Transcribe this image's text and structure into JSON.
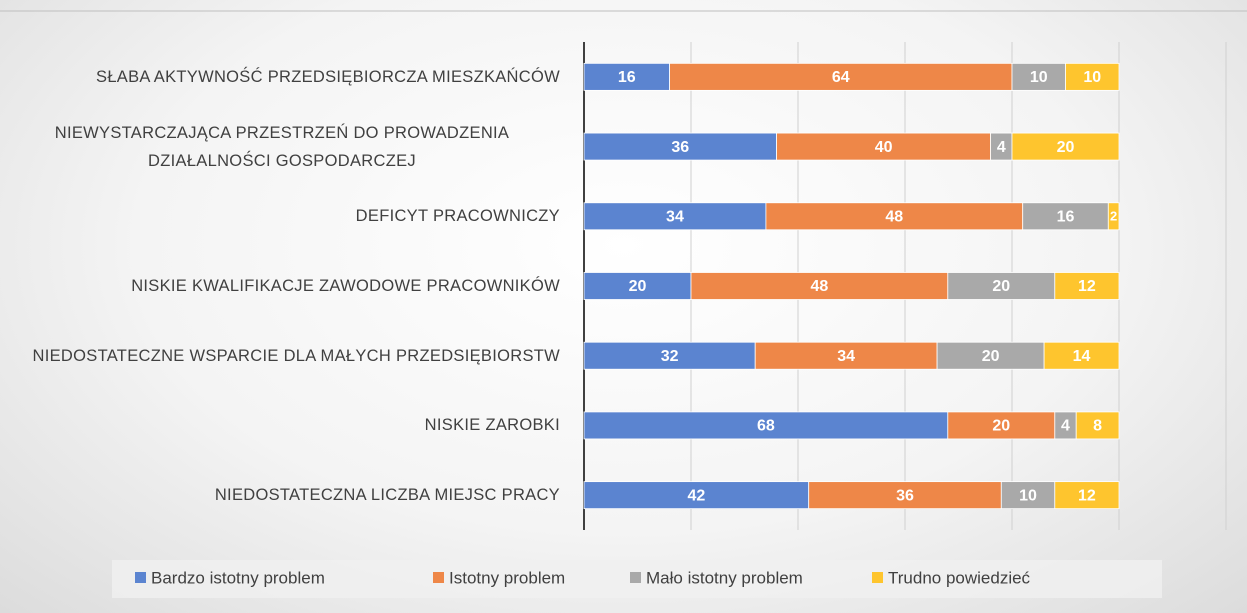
{
  "chart_data": {
    "type": "stacked_bar_horizontal",
    "categories": [
      "SŁABA AKTYWNOŚĆ PRZEDSIĘBIORCZA MIESZKAŃCÓW",
      "NIEWYSTARCZAJĄCA PRZESTRZEŃ DO PROWADZENIA DZIAŁALNOŚCI GOSPODARCZEJ",
      "DEFICYT PRACOWNICZY",
      "NISKIE KWALIFIKACJE ZAWODOWE PRACOWNIKÓW",
      "NIEDOSTATECZNE WSPARCIE DLA MAŁYCH PRZEDSIĘBIORSTW",
      "NISKIE ZAROBKI",
      "NIEDOSTATECZNA LICZBA MIEJSC PRACY"
    ],
    "series": [
      {
        "name": "Bardzo istotny problem",
        "color": "#5b84d0",
        "values": [
          16,
          36,
          34,
          20,
          32,
          68,
          42
        ]
      },
      {
        "name": "Istotny problem",
        "color": "#ee8748",
        "values": [
          64,
          40,
          48,
          48,
          34,
          20,
          36
        ]
      },
      {
        "name": "Mało istotny problem",
        "color": "#a9a9a9",
        "values": [
          10,
          4,
          16,
          20,
          20,
          4,
          10
        ]
      },
      {
        "name": "Trudno powiedzieć",
        "color": "#fec52e",
        "values": [
          10,
          20,
          2,
          12,
          14,
          8,
          12
        ]
      }
    ],
    "xlim": [
      0,
      120
    ],
    "xticks": [
      0,
      20,
      40,
      60,
      80,
      100,
      120
    ],
    "grid": true,
    "legend": "bottom"
  }
}
